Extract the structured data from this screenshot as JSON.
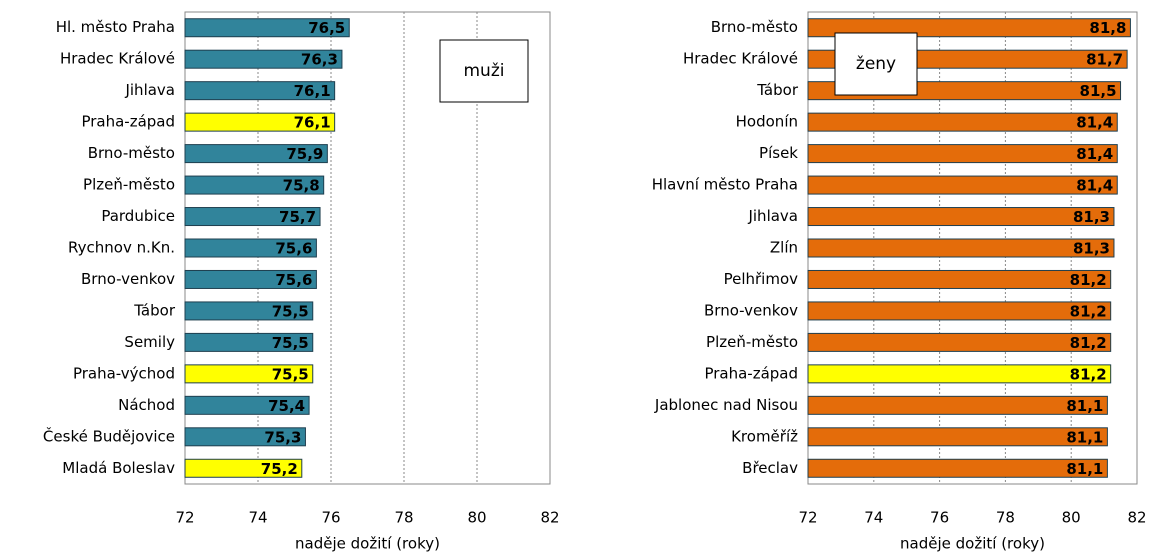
{
  "chart_data": [
    {
      "type": "bar",
      "orientation": "horizontal",
      "annotation": "muži",
      "x_label": "naděje dožití (roky)",
      "categories": [
        "Hl. město Praha",
        "Hradec Králové",
        "Jihlava",
        "Praha-západ",
        "Brno-město",
        "Plzeň-město",
        "Pardubice",
        "Rychnov n.Kn.",
        "Brno-venkov",
        "Tábor",
        "Semily",
        "Praha-východ",
        "Náchod",
        "České Budějovice",
        "Mladá Boleslav"
      ],
      "values": [
        76.5,
        76.3,
        76.1,
        76.1,
        75.9,
        75.8,
        75.7,
        75.6,
        75.6,
        75.5,
        75.5,
        75.5,
        75.4,
        75.3,
        75.2
      ],
      "value_labels": [
        "76,5",
        "76,3",
        "76,1",
        "76,1",
        "75,9",
        "75,8",
        "75,7",
        "75,6",
        "75,6",
        "75,5",
        "75,5",
        "75,5",
        "75,4",
        "75,3",
        "75,2"
      ],
      "colors": [
        "#31849b",
        "#31849b",
        "#31849b",
        "#ffff00",
        "#31849b",
        "#31849b",
        "#31849b",
        "#31849b",
        "#31849b",
        "#31849b",
        "#31849b",
        "#ffff00",
        "#31849b",
        "#31849b",
        "#ffff00"
      ],
      "xlim": [
        72,
        82
      ],
      "xticks": [
        72,
        74,
        76,
        78,
        80,
        82
      ],
      "grid": true
    },
    {
      "type": "bar",
      "orientation": "horizontal",
      "annotation": "ženy",
      "x_label": "naděje dožití (roky)",
      "categories": [
        "Brno-město",
        "Hradec Králové",
        "Tábor",
        "Hodonín",
        "Písek",
        "Hlavní město Praha",
        "Jihlava",
        "Zlín",
        "Pelhřimov",
        "Brno-venkov",
        "Plzeň-město",
        "Praha-západ",
        "Jablonec nad Nisou",
        "Kroměříž",
        "Břeclav"
      ],
      "values": [
        81.8,
        81.7,
        81.5,
        81.4,
        81.4,
        81.4,
        81.3,
        81.3,
        81.2,
        81.2,
        81.2,
        81.2,
        81.1,
        81.1,
        81.1
      ],
      "value_labels": [
        "81,8",
        "81,7",
        "81,5",
        "81,4",
        "81,4",
        "81,4",
        "81,3",
        "81,3",
        "81,2",
        "81,2",
        "81,2",
        "81,2",
        "81,1",
        "81,1",
        "81,1"
      ],
      "colors": [
        "#e46c0a",
        "#e46c0a",
        "#e46c0a",
        "#e46c0a",
        "#e46c0a",
        "#e46c0a",
        "#e46c0a",
        "#e46c0a",
        "#e46c0a",
        "#e46c0a",
        "#e46c0a",
        "#ffff00",
        "#e46c0a",
        "#e46c0a",
        "#e46c0a"
      ],
      "xlim": [
        72,
        82
      ],
      "xticks": [
        72,
        74,
        76,
        78,
        80,
        82
      ],
      "grid": true
    }
  ]
}
